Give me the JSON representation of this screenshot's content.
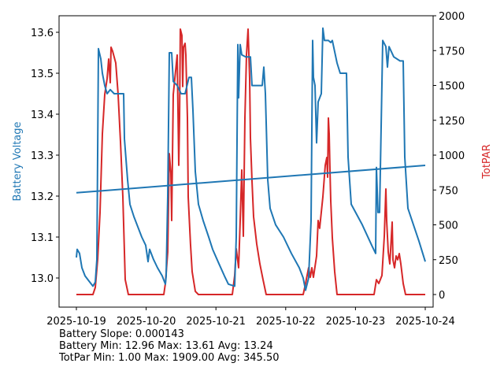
{
  "chart_data": {
    "type": "line",
    "xlabel": "",
    "ylabel_left": "Battery Voltage",
    "ylabel_right": "TotPAR",
    "x_ticks": [
      "2025-10-19",
      "2025-10-20",
      "2025-10-21",
      "2025-10-22",
      "2025-10-23",
      "2025-10-24"
    ],
    "x_unit": "days since 2025-10-19",
    "xlim": [
      -0.25,
      5.25
    ],
    "ylim_left": [
      12.93,
      13.64
    ],
    "ylim_right": [
      -75,
      2000
    ],
    "y_ticks_left": [
      13.0,
      13.1,
      13.2,
      13.3,
      13.4,
      13.5,
      13.6
    ],
    "y_ticks_right": [
      0,
      250,
      500,
      750,
      1000,
      1250,
      1500,
      1750,
      2000
    ],
    "colors": {
      "battery": "#1f77b4",
      "par": "#d62728"
    },
    "series": [
      {
        "name": "Battery Voltage",
        "axis": "left",
        "points": [
          [
            0,
            13.05
          ],
          [
            0.011,
            13.07
          ],
          [
            0.045,
            13.06
          ],
          [
            0.079,
            13.025
          ],
          [
            0.124,
            13.005
          ],
          [
            0.169,
            12.995
          ],
          [
            0.237,
            12.98
          ],
          [
            0.271,
            12.99
          ],
          [
            0.293,
            13.045
          ],
          [
            0.316,
            13.56
          ],
          [
            0.35,
            13.535
          ],
          [
            0.372,
            13.5
          ],
          [
            0.406,
            13.47
          ],
          [
            0.44,
            13.45
          ],
          [
            0.485,
            13.46
          ],
          [
            0.542,
            13.45
          ],
          [
            0.677,
            13.45
          ],
          [
            0.688,
            13.34
          ],
          [
            0.734,
            13.24
          ],
          [
            0.767,
            13.18
          ],
          [
            0.824,
            13.15
          ],
          [
            0.88,
            13.125
          ],
          [
            0.937,
            13.1
          ],
          [
            0.993,
            13.08
          ],
          [
            1.027,
            13.04
          ],
          [
            1.05,
            13.07
          ],
          [
            1.106,
            13.045
          ],
          [
            1.163,
            13.025
          ],
          [
            1.23,
            13.005
          ],
          [
            1.275,
            12.985
          ],
          [
            1.287,
            13.005
          ],
          [
            1.309,
            13.2
          ],
          [
            1.332,
            13.55
          ],
          [
            1.366,
            13.55
          ],
          [
            1.388,
            13.48
          ],
          [
            1.445,
            13.47
          ],
          [
            1.501,
            13.45
          ],
          [
            1.558,
            13.45
          ],
          [
            1.614,
            13.49
          ],
          [
            1.648,
            13.49
          ],
          [
            1.67,
            13.41
          ],
          [
            1.704,
            13.26
          ],
          [
            1.749,
            13.18
          ],
          [
            1.817,
            13.14
          ],
          [
            1.896,
            13.1
          ],
          [
            1.953,
            13.07
          ],
          [
            2.043,
            13.035
          ],
          [
            2.122,
            13.005
          ],
          [
            2.178,
            12.985
          ],
          [
            2.269,
            12.98
          ],
          [
            2.291,
            13.1
          ],
          [
            2.314,
            13.57
          ],
          [
            2.325,
            13.44
          ],
          [
            2.348,
            13.57
          ],
          [
            2.37,
            13.545
          ],
          [
            2.427,
            13.54
          ],
          [
            2.494,
            13.54
          ],
          [
            2.517,
            13.47
          ],
          [
            2.573,
            13.47
          ],
          [
            2.664,
            13.47
          ],
          [
            2.686,
            13.515
          ],
          [
            2.709,
            13.45
          ],
          [
            2.743,
            13.24
          ],
          [
            2.777,
            13.17
          ],
          [
            2.856,
            13.13
          ],
          [
            2.968,
            13.1
          ],
          [
            3.081,
            13.06
          ],
          [
            3.194,
            13.025
          ],
          [
            3.251,
            13.0
          ],
          [
            3.284,
            12.97
          ],
          [
            3.329,
            13.0
          ],
          [
            3.363,
            13.14
          ],
          [
            3.386,
            13.58
          ],
          [
            3.397,
            13.49
          ],
          [
            3.42,
            13.47
          ],
          [
            3.442,
            13.33
          ],
          [
            3.465,
            13.43
          ],
          [
            3.51,
            13.45
          ],
          [
            3.533,
            13.61
          ],
          [
            3.555,
            13.58
          ],
          [
            3.612,
            13.58
          ],
          [
            3.646,
            13.575
          ],
          [
            3.668,
            13.58
          ],
          [
            3.736,
            13.525
          ],
          [
            3.781,
            13.5
          ],
          [
            3.871,
            13.5
          ],
          [
            3.894,
            13.295
          ],
          [
            3.939,
            13.18
          ],
          [
            4.097,
            13.13
          ],
          [
            4.233,
            13.08
          ],
          [
            4.289,
            13.06
          ],
          [
            4.3,
            13.27
          ],
          [
            4.323,
            13.16
          ],
          [
            4.345,
            13.16
          ],
          [
            4.391,
            13.58
          ],
          [
            4.436,
            13.565
          ],
          [
            4.458,
            13.515
          ],
          [
            4.481,
            13.565
          ],
          [
            4.549,
            13.54
          ],
          [
            4.639,
            13.53
          ],
          [
            4.684,
            13.53
          ],
          [
            4.707,
            13.295
          ],
          [
            4.752,
            13.17
          ],
          [
            4.831,
            13.13
          ],
          [
            4.91,
            13.09
          ],
          [
            5.0,
            13.04
          ]
        ]
      },
      {
        "name": "Battery Trend",
        "axis": "left",
        "points": [
          [
            0,
            13.208
          ],
          [
            5,
            13.275
          ]
        ]
      },
      {
        "name": "TotPAR",
        "axis": "right",
        "points": [
          [
            0,
            0
          ],
          [
            0.237,
            0
          ],
          [
            0.271,
            51
          ],
          [
            0.305,
            249
          ],
          [
            0.339,
            588
          ],
          [
            0.372,
            1153
          ],
          [
            0.406,
            1435
          ],
          [
            0.44,
            1548
          ],
          [
            0.463,
            1689
          ],
          [
            0.485,
            1520
          ],
          [
            0.497,
            1774
          ],
          [
            0.519,
            1746
          ],
          [
            0.564,
            1661
          ],
          [
            0.598,
            1435
          ],
          [
            0.632,
            1096
          ],
          [
            0.666,
            701
          ],
          [
            0.7,
            107
          ],
          [
            0.745,
            0
          ],
          [
            1.253,
            0
          ],
          [
            1.275,
            79
          ],
          [
            1.309,
            305
          ],
          [
            1.332,
            1011
          ],
          [
            1.354,
            870
          ],
          [
            1.366,
            531
          ],
          [
            1.388,
            1435
          ],
          [
            1.422,
            1605
          ],
          [
            1.445,
            1718
          ],
          [
            1.467,
            927
          ],
          [
            1.479,
            1266
          ],
          [
            1.49,
            1904
          ],
          [
            1.512,
            1859
          ],
          [
            1.524,
            1492
          ],
          [
            1.535,
            1774
          ],
          [
            1.558,
            1802
          ],
          [
            1.569,
            1718
          ],
          [
            1.591,
            1266
          ],
          [
            1.603,
            701
          ],
          [
            1.636,
            362
          ],
          [
            1.659,
            164
          ],
          [
            1.704,
            23
          ],
          [
            1.749,
            0
          ],
          [
            2.235,
            0
          ],
          [
            2.269,
            136
          ],
          [
            2.291,
            328
          ],
          [
            2.325,
            192
          ],
          [
            2.348,
            531
          ],
          [
            2.37,
            893
          ],
          [
            2.393,
            418
          ],
          [
            2.415,
            1266
          ],
          [
            2.438,
            1718
          ],
          [
            2.46,
            1904
          ],
          [
            2.483,
            1548
          ],
          [
            2.494,
            1124
          ],
          [
            2.517,
            814
          ],
          [
            2.54,
            559
          ],
          [
            2.585,
            362
          ],
          [
            2.63,
            220
          ],
          [
            2.675,
            107
          ],
          [
            2.72,
            0
          ],
          [
            3.251,
            0
          ],
          [
            3.284,
            79
          ],
          [
            3.329,
            192
          ],
          [
            3.352,
            124
          ],
          [
            3.375,
            192
          ],
          [
            3.397,
            124
          ],
          [
            3.442,
            277
          ],
          [
            3.465,
            531
          ],
          [
            3.487,
            475
          ],
          [
            3.533,
            701
          ],
          [
            3.567,
            927
          ],
          [
            3.589,
            983
          ],
          [
            3.6,
            842
          ],
          [
            3.612,
            1266
          ],
          [
            3.623,
            1153
          ],
          [
            3.635,
            870
          ],
          [
            3.646,
            672
          ],
          [
            3.668,
            407
          ],
          [
            3.702,
            164
          ],
          [
            3.736,
            0
          ],
          [
            4.266,
            0
          ],
          [
            4.3,
            107
          ],
          [
            4.334,
            79
          ],
          [
            4.379,
            136
          ],
          [
            4.413,
            418
          ],
          [
            4.436,
            757
          ],
          [
            4.447,
            531
          ],
          [
            4.47,
            305
          ],
          [
            4.492,
            220
          ],
          [
            4.515,
            418
          ],
          [
            4.526,
            520
          ],
          [
            4.537,
            249
          ],
          [
            4.56,
            192
          ],
          [
            4.582,
            277
          ],
          [
            4.605,
            249
          ],
          [
            4.628,
            294
          ],
          [
            4.65,
            220
          ],
          [
            4.684,
            79
          ],
          [
            4.718,
            0
          ],
          [
            5.0,
            0
          ]
        ]
      }
    ],
    "annotations": [
      "Battery Slope: 0.000143",
      "Battery Min: 12.96 Max: 13.61 Avg: 13.24",
      "TotPar Min: 1.00 Max: 1909.00 Avg: 345.50"
    ]
  }
}
